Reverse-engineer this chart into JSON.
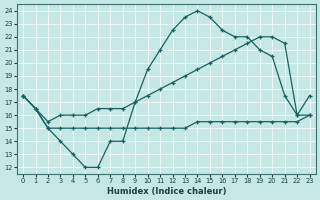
{
  "xlabel": "Humidex (Indice chaleur)",
  "bg_color": "#c5e8e5",
  "line_color": "#1a6060",
  "xlim": [
    -0.5,
    23.5
  ],
  "ylim": [
    11.5,
    24.5
  ],
  "yticks": [
    12,
    13,
    14,
    15,
    16,
    17,
    18,
    19,
    20,
    21,
    22,
    23,
    24
  ],
  "xticks": [
    0,
    1,
    2,
    3,
    4,
    5,
    6,
    7,
    8,
    9,
    10,
    11,
    12,
    13,
    14,
    15,
    16,
    17,
    18,
    19,
    20,
    21,
    22,
    23
  ],
  "line1_x": [
    0,
    1,
    2,
    3,
    4,
    5,
    6,
    7,
    8,
    9,
    10,
    11,
    12,
    13,
    14,
    15,
    16,
    17,
    18,
    19,
    20,
    21,
    22,
    23
  ],
  "line1_y": [
    17.5,
    16.5,
    15.0,
    14.0,
    13.0,
    12.0,
    12.0,
    14.0,
    14.0,
    17.0,
    19.5,
    21.0,
    22.5,
    23.5,
    24.0,
    23.5,
    22.5,
    22.0,
    22.0,
    21.0,
    20.5,
    17.5,
    16.0,
    17.5
  ],
  "line2_x": [
    0,
    1,
    2,
    3,
    4,
    5,
    6,
    7,
    8,
    9,
    10,
    11,
    12,
    13,
    14,
    15,
    16,
    17,
    18,
    19,
    20,
    21,
    22,
    23
  ],
  "line2_y": [
    17.5,
    16.5,
    15.5,
    16.0,
    16.0,
    16.0,
    16.5,
    16.5,
    16.5,
    17.0,
    17.5,
    18.0,
    18.5,
    19.0,
    19.5,
    20.0,
    20.5,
    21.0,
    21.5,
    22.0,
    22.0,
    21.5,
    16.0,
    16.0
  ],
  "line3_x": [
    0,
    1,
    2,
    3,
    4,
    5,
    6,
    7,
    8,
    9,
    10,
    11,
    12,
    13,
    14,
    15,
    16,
    17,
    18,
    19,
    20,
    21,
    22,
    23
  ],
  "line3_y": [
    17.5,
    16.5,
    15.0,
    15.0,
    15.0,
    15.0,
    15.0,
    15.0,
    15.0,
    15.0,
    15.0,
    15.0,
    15.0,
    15.0,
    15.5,
    15.5,
    15.5,
    15.5,
    15.5,
    15.5,
    15.5,
    15.5,
    15.5,
    16.0
  ]
}
